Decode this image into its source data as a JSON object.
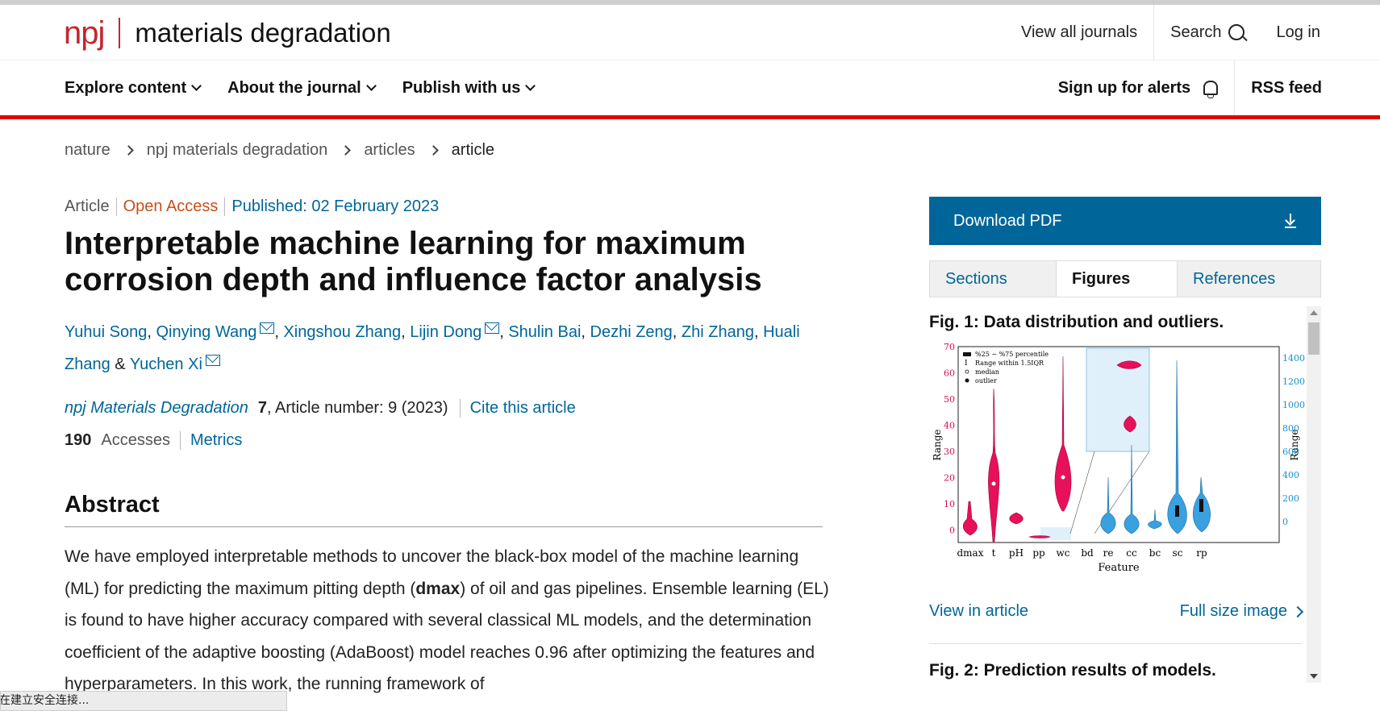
{
  "journal": {
    "brand": "npj",
    "name": "materials degradation"
  },
  "header": {
    "view_all": "View all journals",
    "search": "Search",
    "login": "Log in"
  },
  "nav": {
    "items": [
      "Explore content",
      "About the journal",
      "Publish with us"
    ],
    "alerts": "Sign up for alerts",
    "rss": "RSS feed"
  },
  "breadcrumb": [
    "nature",
    "npj materials degradation",
    "articles",
    "article"
  ],
  "article": {
    "type": "Article",
    "access": "Open Access",
    "published": "Published: 02 February 2023",
    "title": "Interpretable machine learning for maximum corrosion depth and influence factor analysis",
    "authors": [
      "Yuhui Song",
      "Qinying Wang",
      "Xingshou Zhang",
      "Lijin Dong",
      "Shulin Bai",
      "Dezhi Zeng",
      "Zhi Zhang",
      "Huali Zhang",
      "Yuchen Xi"
    ],
    "author_and": "&",
    "journal_title": "npj Materials Degradation",
    "volume": "7",
    "article_number": ", Article number: 9 (2023)",
    "cite": "Cite this article",
    "accesses_count": "190",
    "accesses_label": "Accesses",
    "metrics": "Metrics"
  },
  "abstract": {
    "heading": "Abstract",
    "text_before": "We have employed interpretable methods to uncover the black-box model of the machine learning (ML) for predicting the maximum pitting depth (",
    "bold": "dmax",
    "text_after": ") of oil and gas pipelines. Ensemble learning (EL) is found to have higher accuracy compared with several classical ML models, and the determination coefficient of the adaptive boosting (AdaBoost) model reaches 0.96 after optimizing the features and hyperparameters. In this work, the running framework of"
  },
  "sidebar": {
    "download": "Download PDF",
    "tabs": [
      "Sections",
      "Figures",
      "References"
    ],
    "active_tab": "Figures",
    "fig1_title": "Fig. 1: Data distribution and outliers.",
    "view_in_article": "View in article",
    "full_size": "Full size image",
    "fig2_title": "Fig. 2: Prediction results of models."
  },
  "figure": {
    "legend": [
      "%25 ~ %75 percentile",
      "Range within 1.5IQR",
      "median",
      "outlier"
    ],
    "left_ticks": [
      "70",
      "60",
      "50",
      "40",
      "30",
      "20",
      "10",
      "0"
    ],
    "right_ticks": [
      "1400",
      "1200",
      "1000",
      "800",
      "600",
      "400",
      "200",
      "0"
    ],
    "ylabel": "Range",
    "xlabel": "Feature",
    "categories": [
      "dmax",
      "t",
      "pH",
      "pp",
      "wc",
      "bd",
      "re",
      "cc",
      "bc",
      "sc",
      "rp"
    ],
    "colors": {
      "pink": "#e8105a",
      "blue": "#3aa0e0",
      "left_axis": "#d01050",
      "right_axis": "#1a8fd0"
    }
  },
  "status_bar": "正在建立安全连接..."
}
